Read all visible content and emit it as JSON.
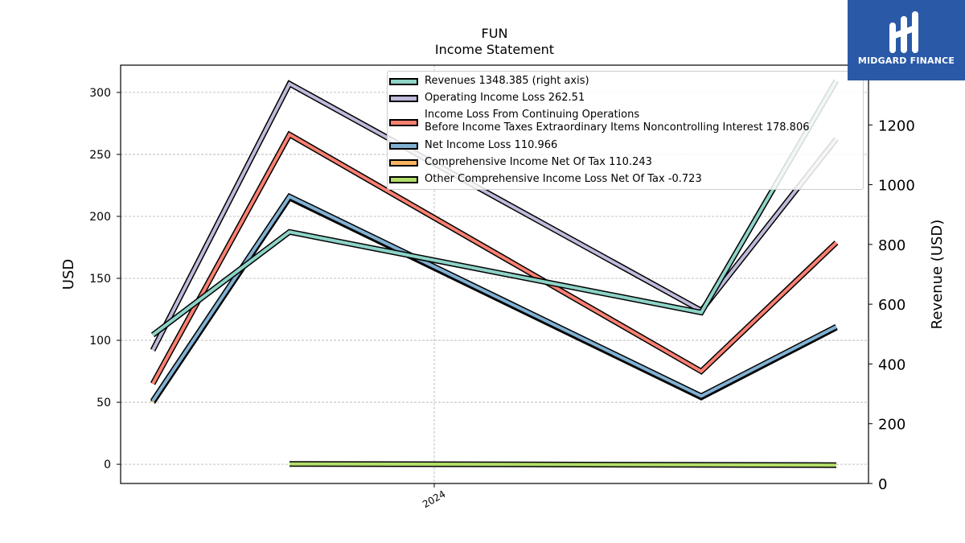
{
  "brand": {
    "name": "MIDGARD FINANCE",
    "logo_icon": "midgard-logo-icon",
    "bg_color": "#2a59a8"
  },
  "chart_data": {
    "type": "line",
    "title": "FUN",
    "subtitle": "Income Statement",
    "ylabel": "USD",
    "ylabel_right": "Revenue (USD)",
    "xlabel": "",
    "x_tick_labels": [
      "2024"
    ],
    "y_ticks_left": [
      0,
      50,
      100,
      150,
      200,
      250,
      300
    ],
    "y_ticks_right": [
      0,
      200,
      400,
      600,
      800,
      1000,
      1200
    ],
    "ylim_left": [
      -15.5,
      322
    ],
    "ylim_right": [
      0,
      1400
    ],
    "grid": true,
    "legend_position": "top-right",
    "series": [
      {
        "name": "Revenues",
        "legend_value": "1348.385 (right axis)",
        "color": "#8dd3c7",
        "axis": "right",
        "values": [
          497,
          842,
          572,
          1348.385
        ]
      },
      {
        "name": "Operating Income Loss",
        "legend_value": "262.51",
        "color": "#bebada",
        "axis": "left",
        "values": [
          92,
          307,
          124,
          262.51
        ]
      },
      {
        "name": "Income Loss From Continuing Operations\nBefore Income Taxes Extraordinary Items Noncontrolling Interest",
        "legend_value": "178.806",
        "color": "#fb8072",
        "axis": "left",
        "values": [
          65,
          266,
          75,
          178.806
        ]
      },
      {
        "name": "Net Income Loss",
        "legend_value": "110.966",
        "color": "#80b1d3",
        "axis": "left",
        "values": [
          51,
          216,
          55,
          110.966
        ]
      },
      {
        "name": "Comprehensive Income Net Of Tax",
        "legend_value": "110.243",
        "color": "#fdb462",
        "axis": "left",
        "values": [
          50,
          215,
          54,
          110.243
        ]
      },
      {
        "name": "Other Comprehensive Income Loss Net Of Tax",
        "legend_value": "-0.723",
        "color": "#b3de69",
        "axis": "left",
        "values": [
          null,
          0.3,
          null,
          -0.723
        ]
      }
    ]
  },
  "legend": [
    {
      "text": "Revenues  1348.385 (right axis)"
    },
    {
      "text": "Operating Income Loss  262.51"
    },
    {
      "text": "Income Loss From Continuing Operations",
      "text2": "Before Income Taxes Extraordinary Items Noncontrolling Interest  178.806"
    },
    {
      "text": "Net Income Loss  110.966"
    },
    {
      "text": "Comprehensive Income Net Of Tax  110.243"
    },
    {
      "text": "Other Comprehensive Income Loss Net Of Tax  -0.723"
    }
  ]
}
